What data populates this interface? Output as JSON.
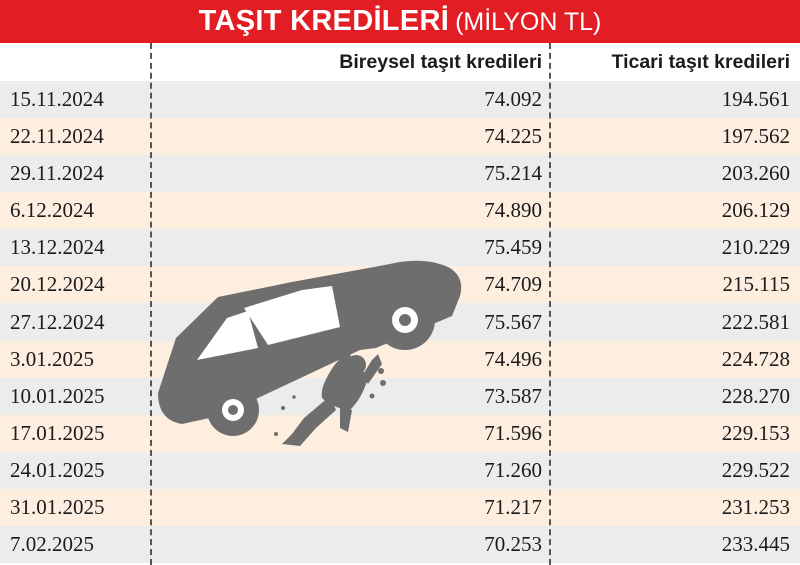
{
  "title": {
    "main": "TAŞIT KREDİLERİ",
    "sub": "(MİLYON TL)"
  },
  "columns": {
    "date": "",
    "individual": "Bireysel taşıt kredileri",
    "commercial": "Ticari taşıt kredileri"
  },
  "rows": [
    {
      "date": "15.11.2024",
      "individual": "74.092",
      "commercial": "194.561"
    },
    {
      "date": "22.11.2024",
      "individual": "74.225",
      "commercial": "197.562"
    },
    {
      "date": "29.11.2024",
      "individual": "75.214",
      "commercial": "203.260"
    },
    {
      "date": "6.12.2024",
      "individual": "74.890",
      "commercial": "206.129"
    },
    {
      "date": "13.12.2024",
      "individual": "75.459",
      "commercial": "210.229"
    },
    {
      "date": "20.12.2024",
      "individual": "74.709",
      "commercial": "215.115"
    },
    {
      "date": "27.12.2024",
      "individual": "75.567",
      "commercial": "222.581"
    },
    {
      "date": "3.01.2025",
      "individual": "74.496",
      "commercial": "224.728"
    },
    {
      "date": "10.01.2025",
      "individual": "73.587",
      "commercial": "228.270"
    },
    {
      "date": "17.01.2025",
      "individual": "71.596",
      "commercial": "229.153"
    },
    {
      "date": "24.01.2025",
      "individual": "71.260",
      "commercial": "229.522"
    },
    {
      "date": "31.01.2025",
      "individual": "71.217",
      "commercial": "231.253"
    },
    {
      "date": "7.02.2025",
      "individual": "70.253",
      "commercial": "233.445"
    }
  ],
  "colors": {
    "title_bg": "#e31d24",
    "row_alt": "#fdeee0",
    "row_plain": "#ececec",
    "illustration": "#6e6e6e"
  },
  "illustration": {
    "icon": "car-crushing-person-icon"
  }
}
